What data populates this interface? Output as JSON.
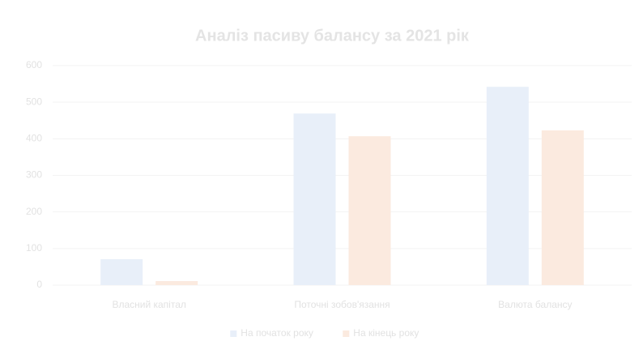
{
  "chart_data": {
    "type": "bar",
    "title": "Аналіз пасиву балансу за 2021 рік",
    "categories": [
      "Власний капітал",
      "Поточні зобов'язання",
      "Валюта балансу"
    ],
    "series": [
      {
        "name": "На початок року",
        "color": "#e8eff9",
        "values": [
          71,
          469,
          542
        ]
      },
      {
        "name": "На кінець року",
        "color": "#fbeadf",
        "values": [
          11,
          407,
          423
        ]
      }
    ],
    "ylim": [
      0,
      600
    ],
    "yticks": [
      0,
      100,
      200,
      300,
      400,
      500,
      600
    ],
    "grid": true,
    "legend": "bottom"
  }
}
